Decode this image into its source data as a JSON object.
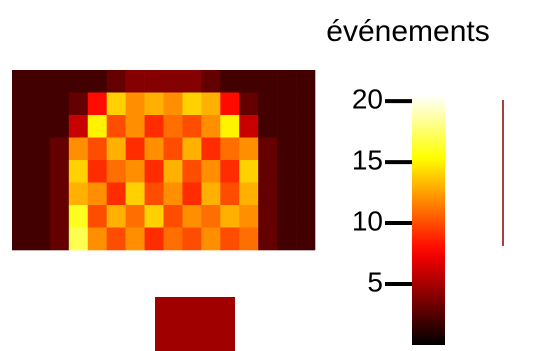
{
  "chart_data": {
    "type": "heatmap",
    "colormap": "hot",
    "colorbar_label": "événements",
    "clim": [
      0,
      20.5
    ],
    "cticks": [
      5,
      10,
      15,
      20
    ],
    "z": [
      [
        2,
        2,
        2,
        2,
        2,
        3,
        4,
        4,
        4,
        4,
        3,
        2,
        2,
        2,
        2,
        2
      ],
      [
        2,
        2,
        2,
        3,
        8,
        14,
        12,
        13,
        12,
        14,
        13,
        8,
        3,
        2,
        2,
        2
      ],
      [
        2,
        2,
        2,
        6,
        15,
        10,
        12,
        9,
        11,
        10,
        12,
        15,
        6,
        2,
        2,
        2
      ],
      [
        2,
        2,
        3,
        12,
        10,
        13,
        9,
        12,
        10,
        13,
        9,
        11,
        12,
        3,
        2,
        2
      ],
      [
        2,
        2,
        3,
        14,
        9,
        11,
        12,
        9,
        13,
        10,
        12,
        9,
        14,
        3,
        2,
        2
      ],
      [
        2,
        2,
        3,
        13,
        12,
        9,
        14,
        10,
        12,
        9,
        13,
        10,
        13,
        3,
        2,
        2
      ],
      [
        2,
        2,
        3,
        16,
        10,
        13,
        11,
        14,
        10,
        12,
        11,
        13,
        12,
        3,
        2,
        2
      ],
      [
        2,
        2,
        3,
        17,
        12,
        10,
        12,
        9,
        11,
        10,
        12,
        10,
        11,
        3,
        2,
        2
      ]
    ]
  }
}
